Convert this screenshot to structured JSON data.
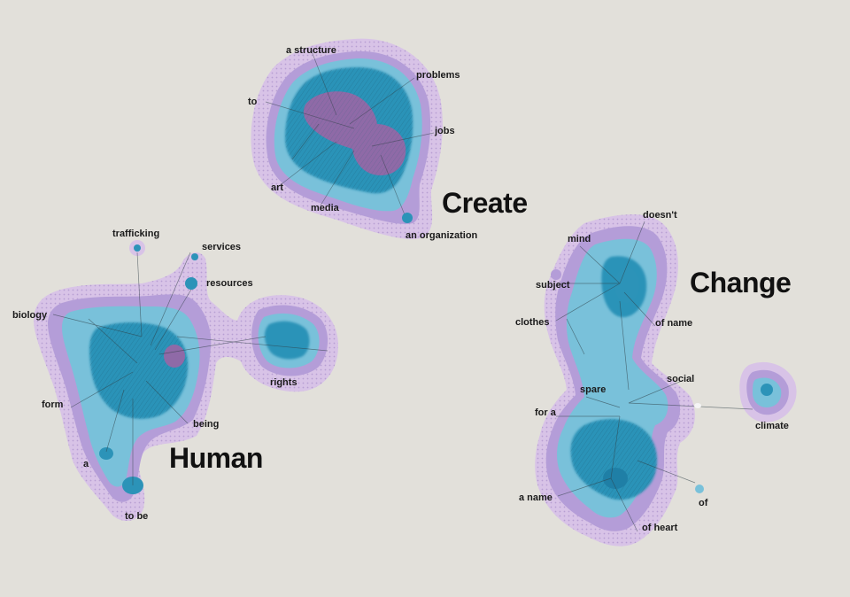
{
  "clusters": [
    {
      "id": "create",
      "title": "Create",
      "labels": [
        "a structure",
        "problems",
        "to",
        "jobs",
        "art",
        "media",
        "an organization"
      ]
    },
    {
      "id": "human",
      "title": "Human",
      "labels": [
        "trafficking",
        "services",
        "resources",
        "biology",
        "rights",
        "form",
        "being",
        "a",
        "to be"
      ]
    },
    {
      "id": "change",
      "title": "Change",
      "labels": [
        "doesn't",
        "mind",
        "subject",
        "clothes",
        "of name",
        "social",
        "spare",
        "for a",
        "climate",
        "a name",
        "of",
        "of heart"
      ]
    }
  ],
  "colors": {
    "background": "#e2e0da",
    "outer": "#d7c2e6",
    "ring": "#b39bd6",
    "mid": "#73bbd6",
    "deep": "#2b93b7",
    "core": "#8e6aa6",
    "edges": "#3a4a50"
  }
}
